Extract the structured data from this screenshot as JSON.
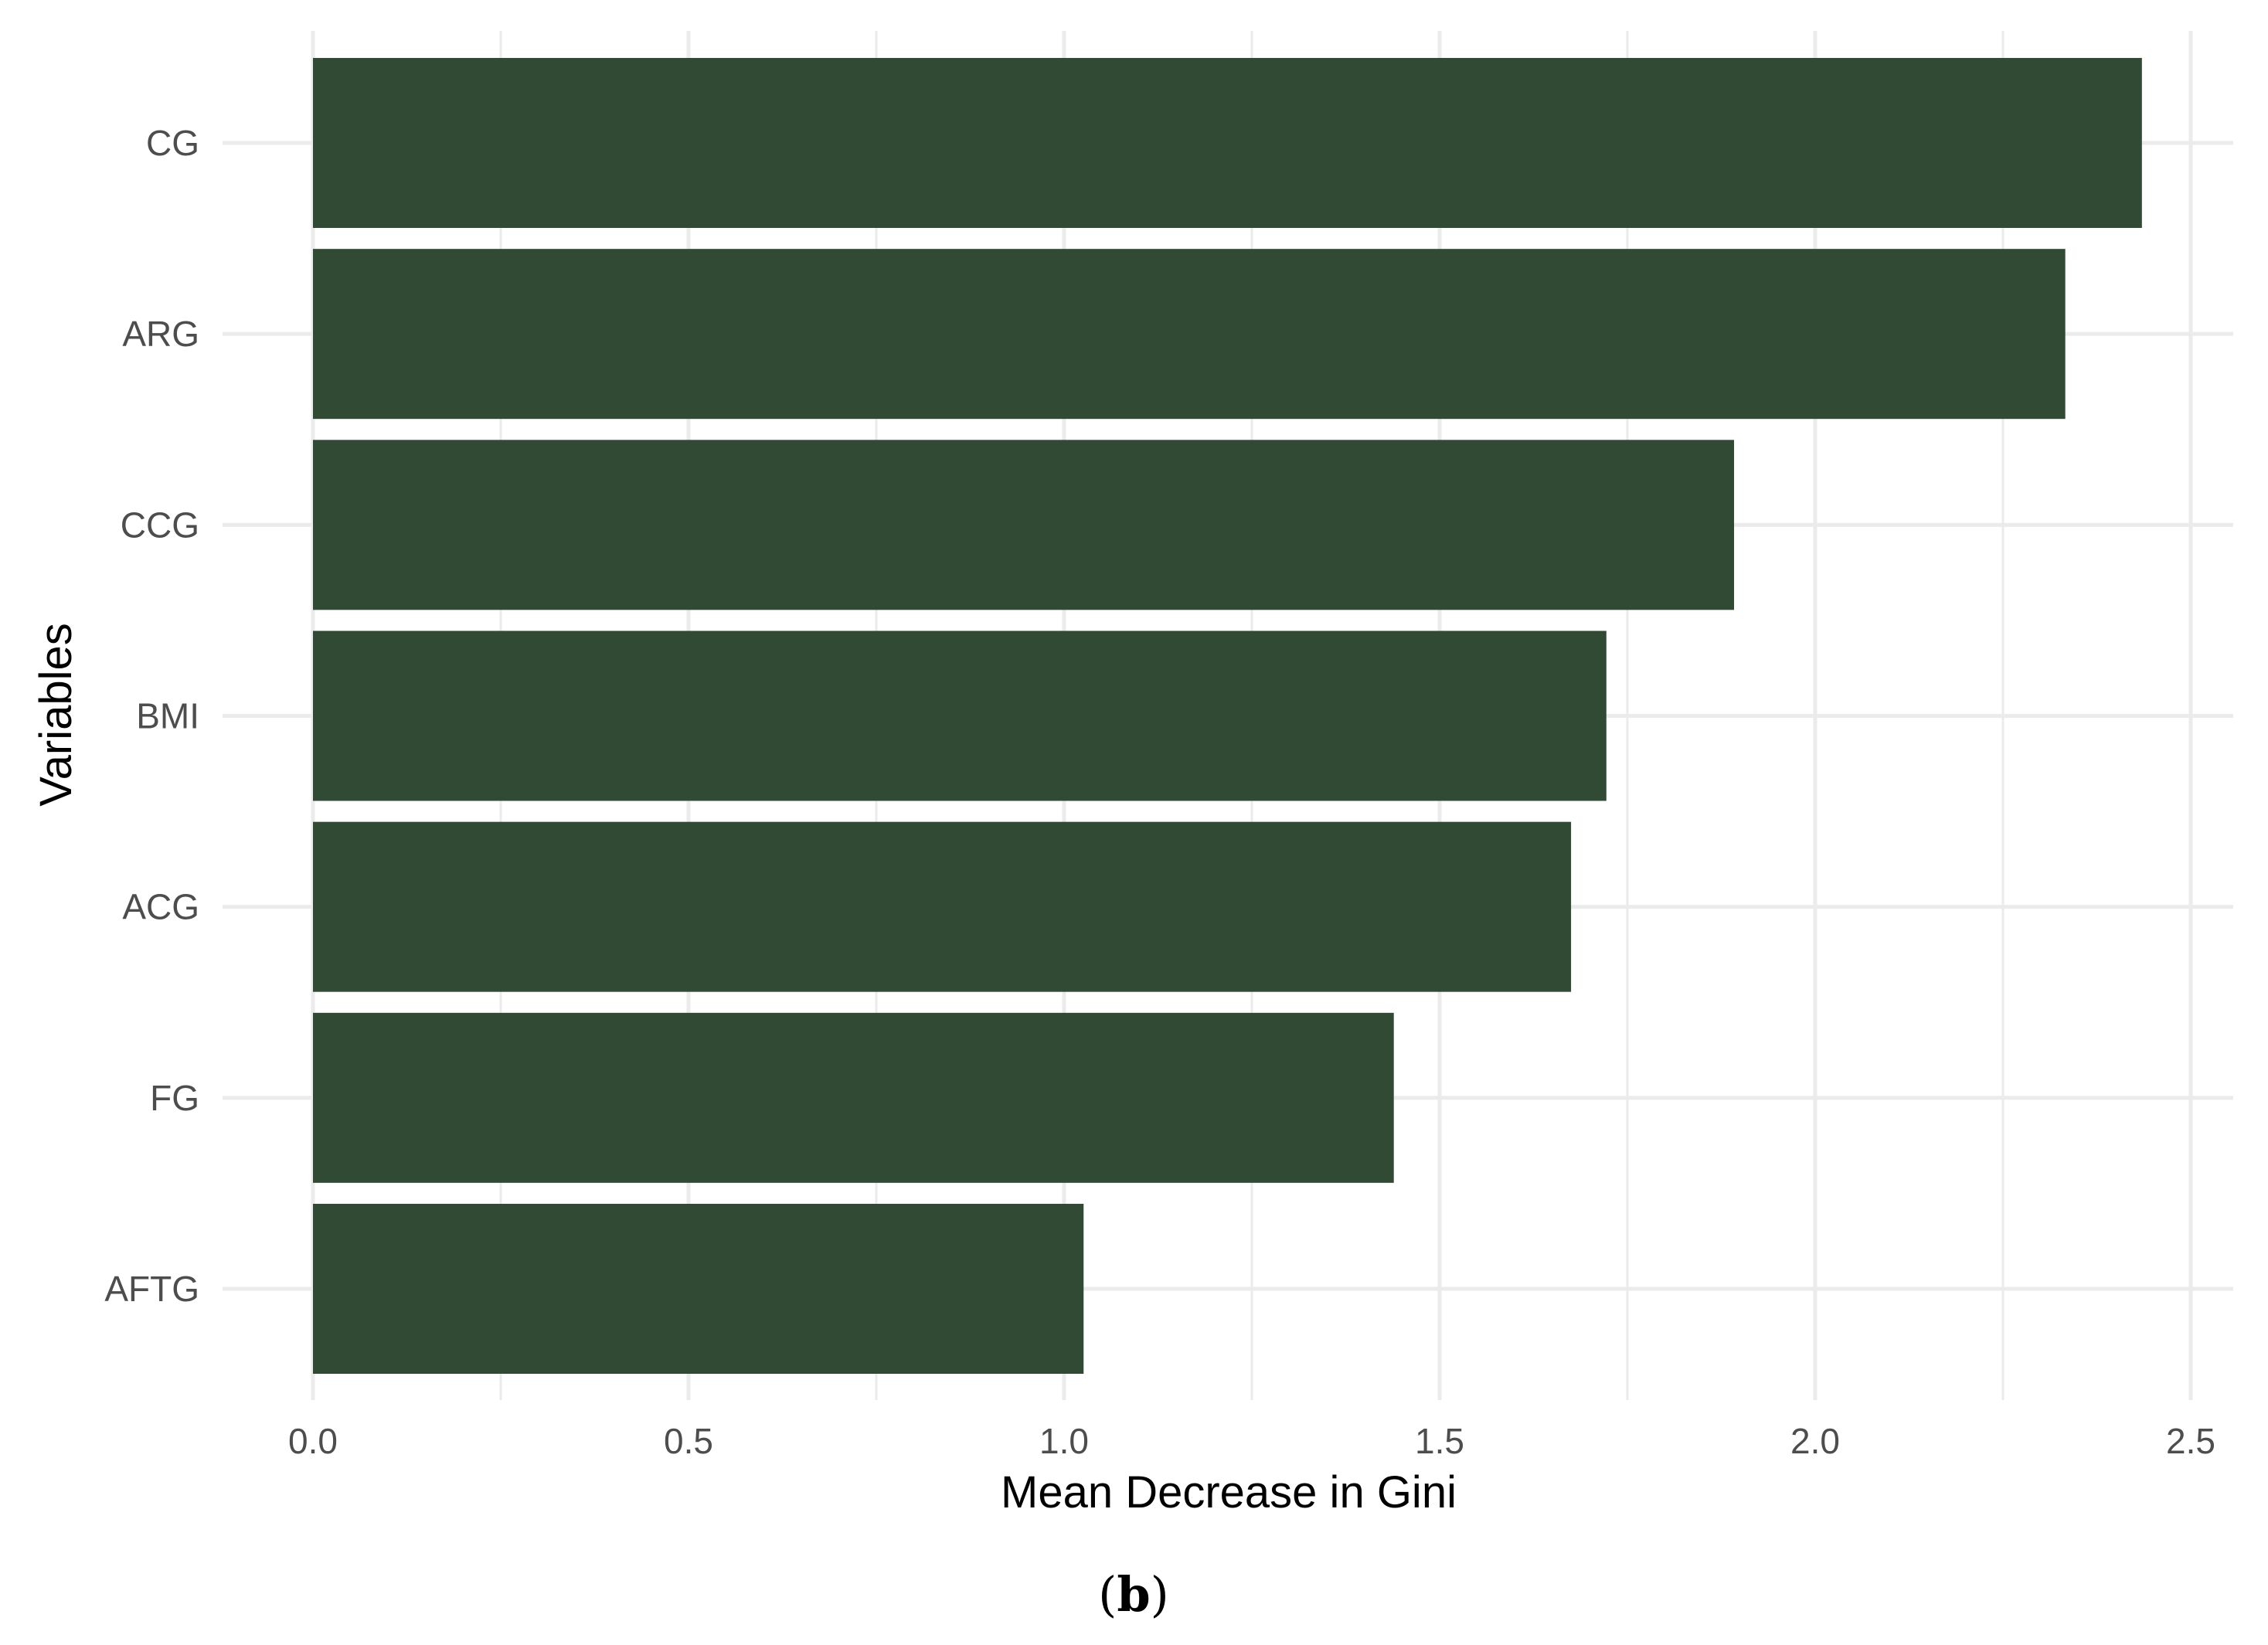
{
  "chart_data": {
    "type": "bar",
    "orientation": "horizontal",
    "categories": [
      "CG",
      "ARG",
      "CCG",
      "BMI",
      "ACG",
      "FG",
      "AFTG"
    ],
    "values": [
      2.435,
      2.333,
      1.892,
      1.722,
      1.675,
      1.439,
      1.026
    ],
    "xlabel": "Mean Decrease in Gini",
    "ylabel": "Variables",
    "xlim": [
      0,
      2.5
    ],
    "x_ticks": [
      "0.0",
      "0.5",
      "1.0",
      "1.5",
      "2.0",
      "2.5"
    ],
    "x_tick_values": [
      0,
      0.5,
      1.0,
      1.5,
      2.0,
      2.5
    ],
    "x_minor_tick_values": [
      0.25,
      0.75,
      1.25,
      1.75,
      2.25
    ],
    "grid": true,
    "bar_color": "#314A33",
    "grid_color": "#EBEBEB"
  },
  "caption": {
    "open": "(",
    "letter": "b",
    "close": ")"
  }
}
